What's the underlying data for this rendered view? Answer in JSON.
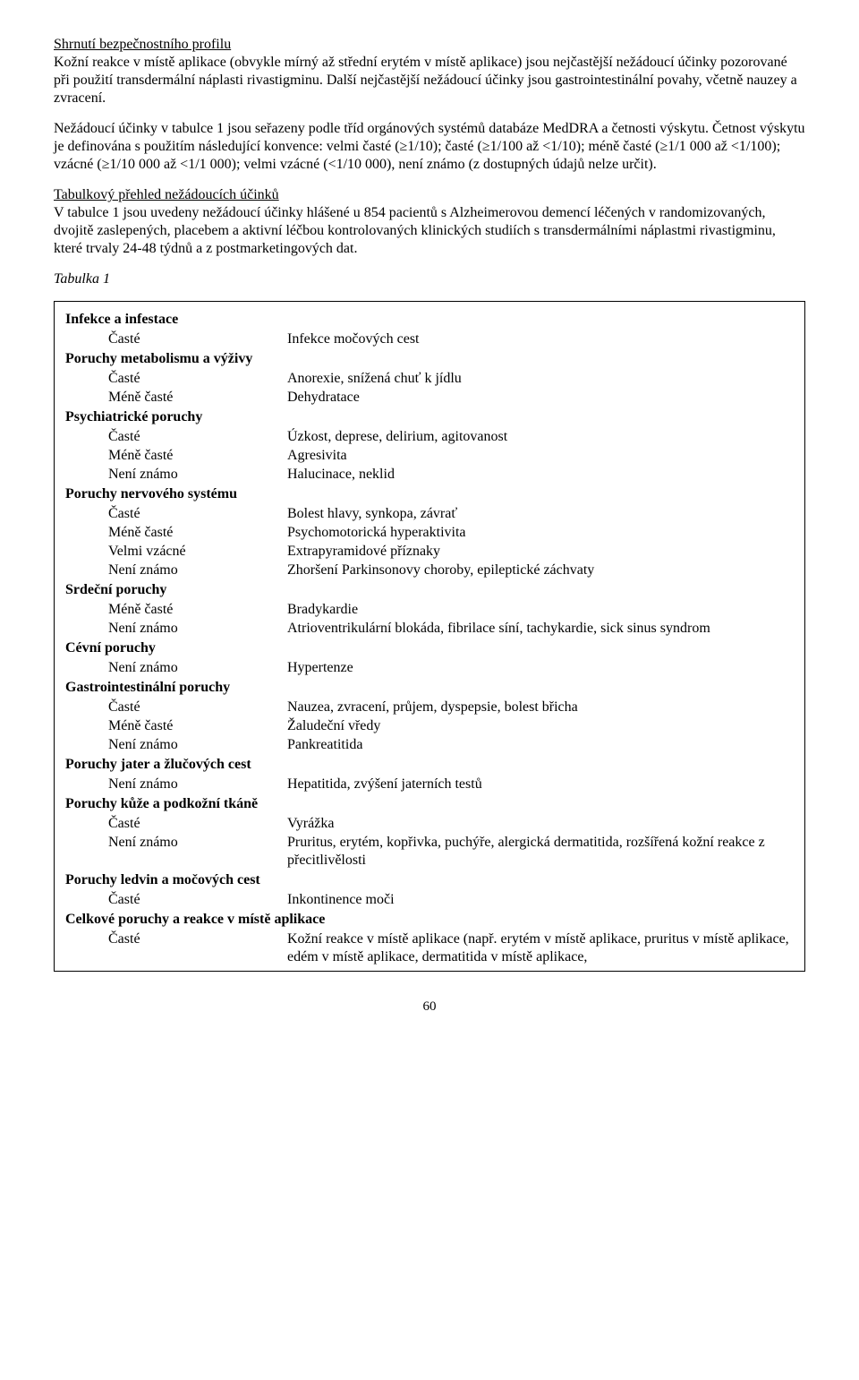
{
  "heading1": "Shrnutí bezpečnostního profilu",
  "para1": "Kožní reakce v místě aplikace (obvykle mírný až střední erytém v místě aplikace) jsou nejčastější nežádoucí účinky pozorované při použití transdermální náplasti rivastigminu. Další nejčastější nežádoucí účinky jsou gastrointestinální povahy, včetně nauzey a zvracení.",
  "para2": "Nežádoucí účinky v tabulce 1 jsou seřazeny podle tříd orgánových systémů databáze MedDRA a četnosti výskytu. Četnost výskytu je definována s použitím následující konvence: velmi časté (≥1/10); časté (≥1/100 až <1/10); méně časté (≥1/1 000 až <1/100); vzácné (≥1/10 000 až <1/1 000); velmi vzácné (<1/10 000), není známo (z dostupných údajů nelze určit).",
  "heading2": "Tabulkový přehled nežádoucích účinků",
  "para3": "V tabulce 1 jsou uvedeny nežádoucí účinky hlášené u 854 pacientů s Alzheimerovou demencí léčených v randomizovaných, dvojitě zaslepených, placebem a aktivní léčbou kontrolovaných klinických studiích s  transdermálními náplastmi rivastigminu, které trvaly 24-48 týdnů a z postmarketingových dat.",
  "tableLabel": "Tabulka 1",
  "sections": [
    {
      "title": "Infekce a infestace",
      "rows": [
        {
          "freq": "Časté",
          "desc": "Infekce močových cest"
        }
      ]
    },
    {
      "title": "Poruchy metabolismu a výživy",
      "rows": [
        {
          "freq": "Časté",
          "desc": "Anorexie, snížená chuť k jídlu"
        },
        {
          "freq": "Méně časté",
          "desc": "Dehydratace"
        }
      ]
    },
    {
      "title": "Psychiatrické poruchy",
      "rows": [
        {
          "freq": "Časté",
          "desc": "Úzkost, deprese, delirium, agitovanost"
        },
        {
          "freq": "Méně časté",
          "desc": "Agresivita"
        },
        {
          "freq": "Není známo",
          "desc": "Halucinace, neklid"
        }
      ]
    },
    {
      "title": "Poruchy nervového systému",
      "rows": [
        {
          "freq": "Časté",
          "desc": "Bolest hlavy, synkopa, závrať"
        },
        {
          "freq": "Méně časté",
          "desc": "Psychomotorická hyperaktivita"
        },
        {
          "freq": "Velmi vzácné",
          "desc": "Extrapyramidové příznaky"
        },
        {
          "freq": "Není známo",
          "desc": "Zhoršení Parkinsonovy choroby, epileptické záchvaty"
        }
      ]
    },
    {
      "title": "Srdeční poruchy",
      "rows": [
        {
          "freq": "Méně časté",
          "desc": "Bradykardie"
        },
        {
          "freq": "Není známo",
          "desc": "Atrioventrikulární blokáda, fibrilace síní, tachykardie, sick sinus syndrom"
        }
      ]
    },
    {
      "title": "Cévní poruchy",
      "rows": [
        {
          "freq": "Není známo",
          "desc": "Hypertenze"
        }
      ]
    },
    {
      "title": "Gastrointestinální poruchy",
      "rows": [
        {
          "freq": "Časté",
          "desc": "Nauzea, zvracení, průjem, dyspepsie, bolest břicha"
        },
        {
          "freq": "Méně časté",
          "desc": "Žaludeční vředy"
        },
        {
          "freq": "Není známo",
          "desc": "Pankreatitida"
        }
      ]
    },
    {
      "title": "Poruchy jater a žlučových cest",
      "rows": [
        {
          "freq": "Není známo",
          "desc": "Hepatitida, zvýšení jaterních testů"
        }
      ]
    },
    {
      "title": "Poruchy kůže a podkožní tkáně",
      "rows": [
        {
          "freq": "Časté",
          "desc": "Vyrážka"
        },
        {
          "freq": "Není známo",
          "desc": "Pruritus, erytém, kopřivka, puchýře, alergická dermatitida, rozšířená kožní reakce z přecitlivělosti"
        }
      ]
    },
    {
      "title": "Poruchy ledvin a močových cest",
      "rows": [
        {
          "freq": "Časté",
          "desc": "Inkontinence moči"
        }
      ]
    },
    {
      "title": "Celkové poruchy a reakce v místě aplikace",
      "rows": [
        {
          "freq": "Časté",
          "desc": "Kožní reakce v místě aplikace (např. erytém v místě aplikace, pruritus v místě aplikace, edém v místě aplikace, dermatitida v místě aplikace,"
        }
      ]
    }
  ],
  "pageNumber": "60"
}
